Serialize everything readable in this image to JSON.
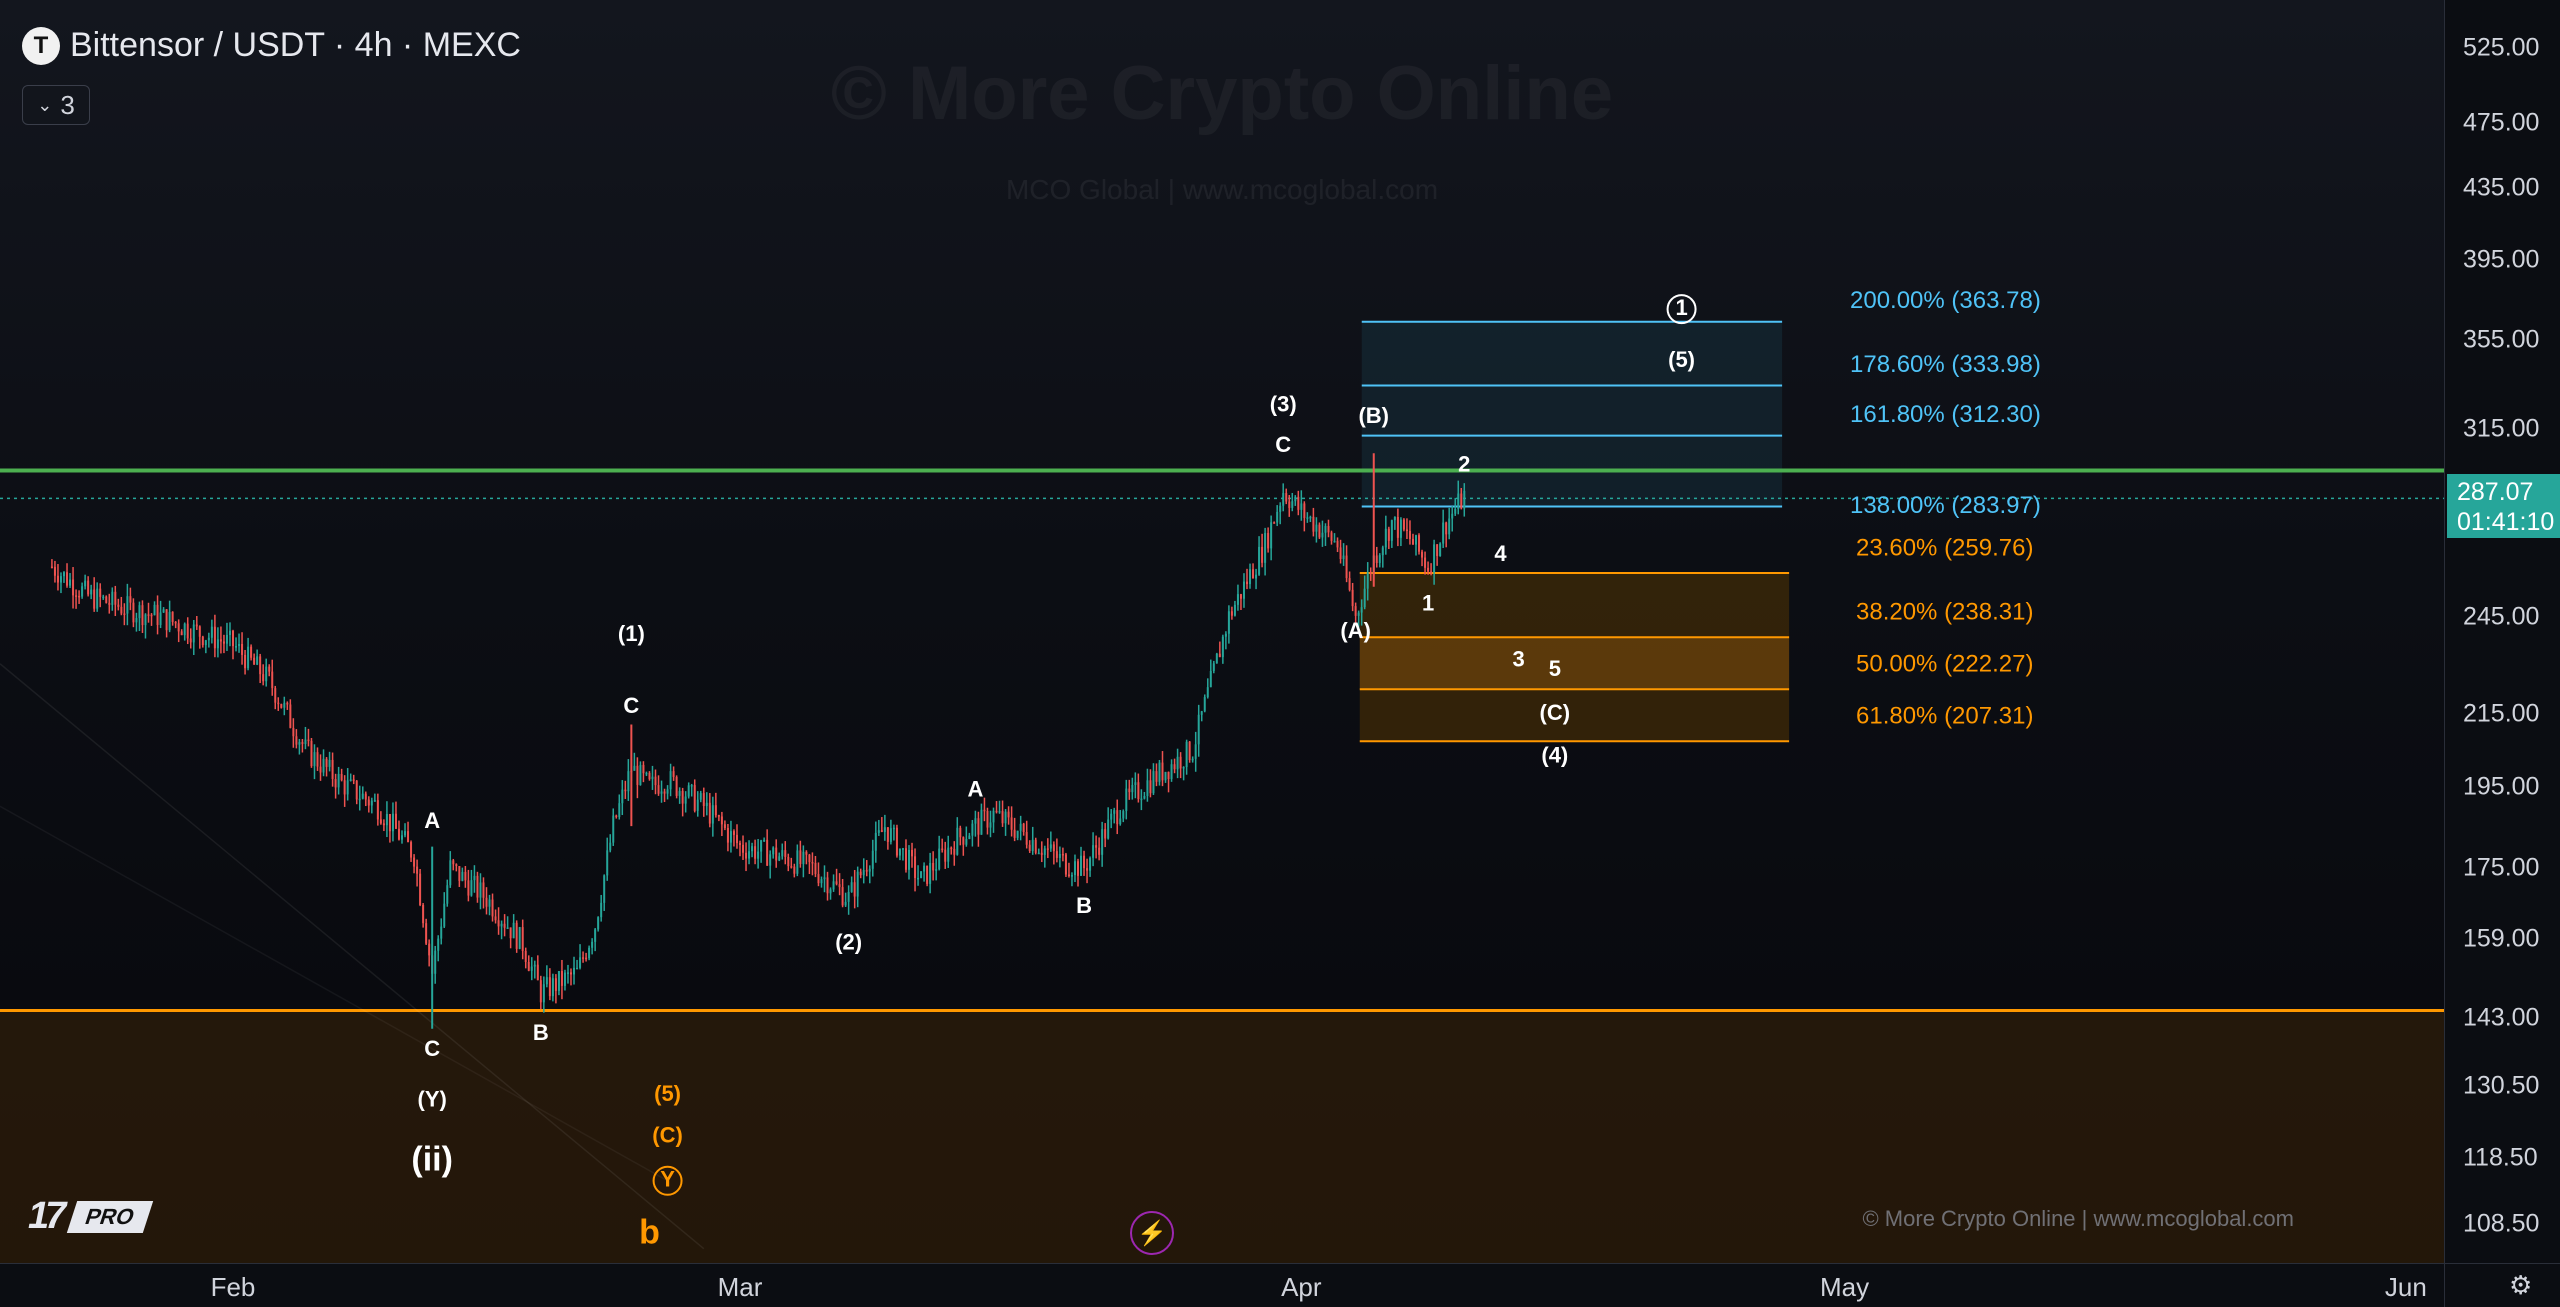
{
  "header": {
    "symbol_logo": "T",
    "title": "Bittensor / USDT · 4h · MEXC",
    "indicators_count": "3"
  },
  "watermark": {
    "title": "© More Crypto Online",
    "subtitle": "MCO Global  |  www.mcoglobal.com",
    "bottom": "© More Crypto Online  |  www.mcoglobal.com"
  },
  "branding": {
    "tv_mark": "17",
    "tv_pro": "PRO"
  },
  "colors": {
    "green_line": "#4caf50",
    "orange": "#ff9800",
    "cyan": "#4fc3f7",
    "up": "#26a69a",
    "down": "#ef5350"
  },
  "current_price": {
    "value": "287.07",
    "countdown": "01:41:10"
  },
  "chart_data": {
    "type": "candlestick",
    "symbol": "Bittensor / USDT",
    "interval": "4h",
    "exchange": "MEXC",
    "y_scale": "log",
    "ylim": [
      103,
      560
    ],
    "price_ticks": [
      "525.00",
      "475.00",
      "435.00",
      "395.00",
      "355.00",
      "315.00",
      "245.00",
      "215.00",
      "195.00",
      "175.00",
      "159.00",
      "143.00",
      "130.50",
      "118.50",
      "108.50"
    ],
    "time_ticks": [
      "Feb",
      "Mar",
      "Apr",
      "May",
      "Jun"
    ],
    "horizontal_lines": [
      {
        "name": "resistance",
        "price": 298,
        "color": "#4caf50"
      },
      {
        "name": "support-zone-top",
        "price": 144.5,
        "color": "#ff9800"
      }
    ],
    "fib_extension": [
      {
        "label": "200.00% (363.78)",
        "price": 363.78
      },
      {
        "label": "178.60% (333.98)",
        "price": 333.98
      },
      {
        "label": "161.80% (312.30)",
        "price": 312.3
      },
      {
        "label": "138.00% (283.97)",
        "price": 283.97
      }
    ],
    "fib_retracement": [
      {
        "label": "23.60% (259.76)",
        "price": 259.76
      },
      {
        "label": "38.20% (238.31)",
        "price": 238.31
      },
      {
        "label": "50.00% (222.27)",
        "price": 222.27
      },
      {
        "label": "61.80% (207.31)",
        "price": 207.31
      }
    ],
    "price_path": [
      [
        "Jan 22",
        262
      ],
      [
        "Jan 24",
        252
      ],
      [
        "Jan 26",
        248
      ],
      [
        "Jan 28",
        245
      ],
      [
        "Jan 30",
        240
      ],
      [
        "Feb 1",
        236
      ],
      [
        "Feb 3",
        225
      ],
      [
        "Feb 5",
        205
      ],
      [
        "Feb 7",
        196
      ],
      [
        "Feb 9",
        190
      ],
      [
        "Feb 11",
        178
      ],
      [
        "Feb 12",
        152
      ],
      [
        "Feb 13",
        175
      ],
      [
        "Feb 15",
        168
      ],
      [
        "Feb 17",
        158
      ],
      [
        "Feb 18",
        148
      ],
      [
        "Feb 20",
        152
      ],
      [
        "Feb 21",
        162
      ],
      [
        "Feb 22",
        185
      ],
      [
        "Feb 23",
        200
      ],
      [
        "Feb 24",
        195
      ],
      [
        "Feb 25",
        197
      ],
      [
        "Feb 27",
        190
      ],
      [
        "Mar 1",
        180
      ],
      [
        "Mar 3",
        178
      ],
      [
        "Mar 5",
        175
      ],
      [
        "Mar 7",
        168
      ],
      [
        "Mar 9",
        185
      ],
      [
        "Mar 11",
        172
      ],
      [
        "Mar 13",
        182
      ],
      [
        "Mar 15",
        188
      ],
      [
        "Mar 17",
        182
      ],
      [
        "Mar 19",
        176
      ],
      [
        "Mar 20",
        175
      ],
      [
        "Mar 22",
        190
      ],
      [
        "Mar 24",
        198
      ],
      [
        "Mar 26",
        205
      ],
      [
        "Mar 28",
        245
      ],
      [
        "Mar 30",
        270
      ],
      [
        "Mar 31",
        290
      ],
      [
        "Apr 1",
        282
      ],
      [
        "Apr 3",
        270
      ],
      [
        "Apr 4",
        245
      ],
      [
        "Apr 5",
        265
      ],
      [
        "Apr 6",
        278
      ],
      [
        "Apr 7",
        272
      ],
      [
        "Apr 8",
        262
      ],
      [
        "Apr 9",
        278
      ],
      [
        "Apr 10",
        288
      ]
    ],
    "wave_labels": [
      {
        "text": "C",
        "date": "Feb 12",
        "price": 137,
        "color": "white"
      },
      {
        "text": "A",
        "date": "Feb 12",
        "price": 186,
        "color": "white"
      },
      {
        "text": "(Y)",
        "date": "Feb 12",
        "price": 128,
        "color": "white"
      },
      {
        "text": "(ii)",
        "date": "Feb 12",
        "price": 118,
        "color": "white"
      },
      {
        "text": "B",
        "date": "Feb 18",
        "price": 140,
        "color": "white"
      },
      {
        "text": "C",
        "date": "Feb 23",
        "price": 217,
        "color": "white"
      },
      {
        "text": "(1)",
        "date": "Feb 23",
        "price": 239,
        "color": "white"
      },
      {
        "text": "(5)",
        "date": "Feb 25",
        "price": 129,
        "color": "orange"
      },
      {
        "text": "(C)",
        "date": "Feb 25",
        "price": 122,
        "color": "orange"
      },
      {
        "text": "Y",
        "date": "Feb 25",
        "price": 115,
        "color": "orange",
        "circled": true
      },
      {
        "text": "b",
        "date": "Feb 24",
        "price": 107,
        "color": "orange"
      },
      {
        "text": "(2)",
        "date": "Mar 7",
        "price": 158,
        "color": "white"
      },
      {
        "text": "A",
        "date": "Mar 14",
        "price": 194,
        "color": "white"
      },
      {
        "text": "B",
        "date": "Mar 20",
        "price": 166,
        "color": "white"
      },
      {
        "text": "(3)",
        "date": "Mar 31",
        "price": 325,
        "color": "white"
      },
      {
        "text": "C",
        "date": "Mar 31",
        "price": 308,
        "color": "white"
      },
      {
        "text": "(A)",
        "date": "Apr 4",
        "price": 240,
        "color": "white"
      },
      {
        "text": "(B)",
        "date": "Apr 5",
        "price": 320,
        "color": "white"
      },
      {
        "text": "2",
        "date": "Apr 10",
        "price": 300,
        "color": "white"
      },
      {
        "text": "1",
        "date": "Apr 8",
        "price": 249,
        "color": "white"
      },
      {
        "text": "4",
        "date": "Apr 12",
        "price": 266,
        "color": "white"
      },
      {
        "text": "3",
        "date": "Apr 13",
        "price": 231,
        "color": "white"
      },
      {
        "text": "5",
        "date": "Apr 15",
        "price": 228,
        "color": "white"
      },
      {
        "text": "(C)",
        "date": "Apr 15",
        "price": 215,
        "color": "white"
      },
      {
        "text": "(4)",
        "date": "Apr 15",
        "price": 203,
        "color": "white"
      },
      {
        "text": "1",
        "date": "Apr 22",
        "price": 370,
        "color": "white",
        "circled": true
      },
      {
        "text": "(5)",
        "date": "Apr 22",
        "price": 345,
        "color": "white"
      }
    ]
  }
}
